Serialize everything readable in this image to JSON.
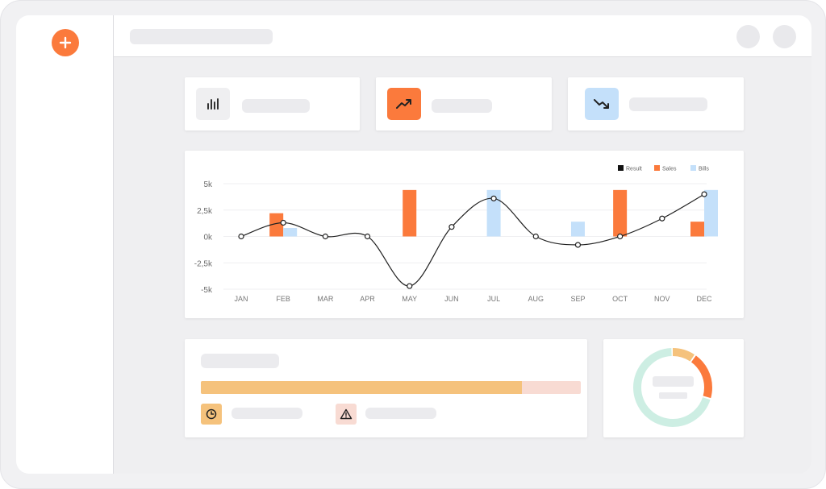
{
  "app": {
    "accent_color": "#fb7a3c"
  },
  "sidebar": {
    "add_icon": "plus-icon"
  },
  "header": {
    "actions": [
      "avatar",
      "settings"
    ]
  },
  "stats": [
    {
      "icon": "bar-chart-icon",
      "color": "#efeff1"
    },
    {
      "icon": "trending-up-icon",
      "color": "#fb7a3c"
    },
    {
      "icon": "trending-down-icon",
      "color": "#c4e0fa"
    }
  ],
  "chart_data": {
    "type": "bar",
    "categories": [
      "JAN",
      "FEB",
      "MAR",
      "APR",
      "MAY",
      "JUN",
      "JUL",
      "AUG",
      "SEP",
      "OCT",
      "NOV",
      "DEC"
    ],
    "yticks": [
      "5k",
      "2,5k",
      "0k",
      "-2,5k",
      "-5k"
    ],
    "ylim": [
      -5000,
      5000
    ],
    "series": [
      {
        "name": "Result",
        "type": "line",
        "color": "#222222",
        "values": [
          0,
          1300,
          0,
          0,
          -4700,
          900,
          3600,
          0,
          -800,
          0,
          1700,
          4000
        ]
      },
      {
        "name": "Sales",
        "type": "bar",
        "color": "#fb7a3c",
        "values": [
          0,
          2200,
          0,
          0,
          4400,
          0,
          0,
          0,
          0,
          4400,
          0,
          1400
        ]
      },
      {
        "name": "Bills",
        "type": "bar",
        "color": "#c4e0fa",
        "values": [
          0,
          800,
          0,
          0,
          0,
          0,
          4400,
          0,
          1400,
          0,
          0,
          4400
        ]
      }
    ],
    "legend_position": "top-right",
    "grid": true
  },
  "progress": {
    "fill_fraction": 0.845,
    "fill_color": "#f5c27c",
    "track_color": "#f8dbd3"
  },
  "status_icons": [
    {
      "icon": "clock-icon",
      "color": "#f5c27c"
    },
    {
      "icon": "warning-icon",
      "color": "#f8dbd3"
    }
  ],
  "donut": {
    "segments": [
      {
        "fraction": 0.7,
        "color": "#cdeee3"
      },
      {
        "fraction": 0.1,
        "color": "#f5c27c"
      },
      {
        "fraction": 0.2,
        "color": "#fb7a3c"
      }
    ]
  }
}
